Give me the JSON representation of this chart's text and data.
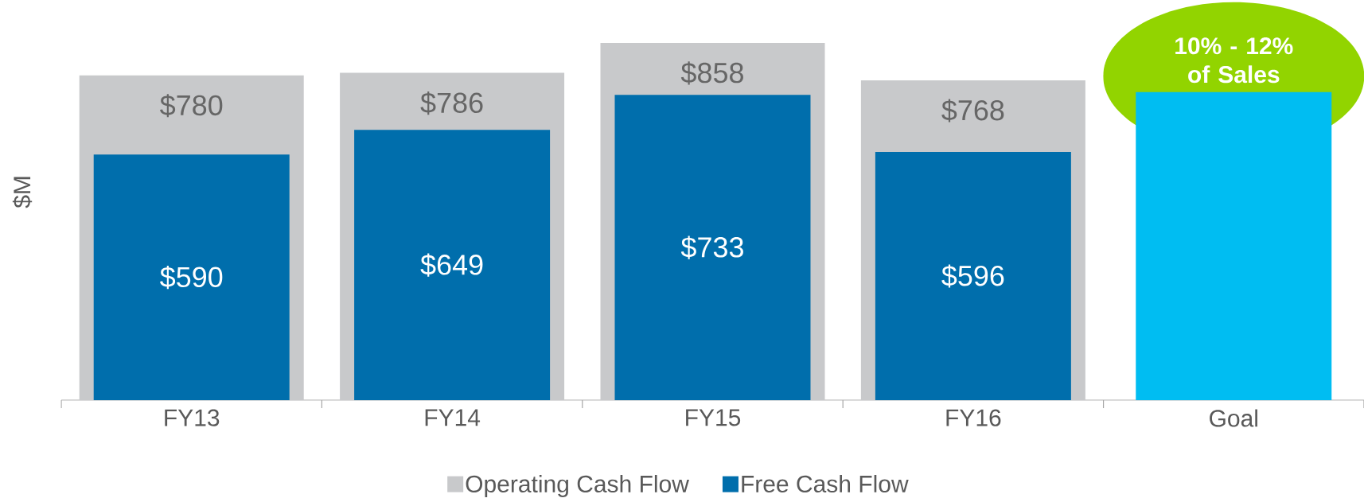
{
  "chart_data": {
    "type": "bar",
    "categories": [
      "FY13",
      "FY14",
      "FY15",
      "FY16",
      "Goal"
    ],
    "ylabel": "$M",
    "legend": "bottom",
    "tick_labels": "x",
    "series": [
      {
        "name": "Operating Cash Flow",
        "color": "#c8c9cb",
        "values": [
          780,
          786,
          858,
          768,
          null
        ],
        "value_labels": [
          "$780",
          "$786",
          "$858",
          "$768",
          null
        ]
      },
      {
        "name": "Free Cash Flow",
        "color": "#006eac",
        "colors": [
          "#006eac",
          "#006eac",
          "#006eac",
          "#006eac",
          "#00bdf2"
        ],
        "values": [
          590,
          649,
          733,
          596,
          740
        ],
        "value_labels": [
          "$590",
          "$649",
          "$733",
          "$596",
          null
        ]
      }
    ],
    "annotations": [
      {
        "text": "10% - 12% of Sales",
        "x": "Goal",
        "y": 740
      }
    ]
  }
}
